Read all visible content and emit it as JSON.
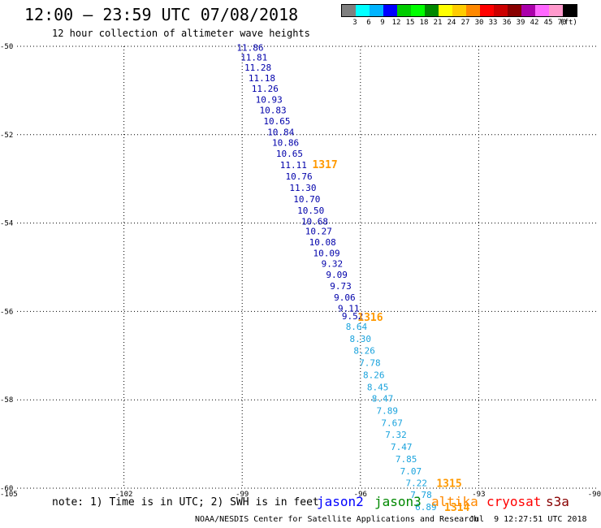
{
  "header": {
    "title": "12:00 – 23:59 UTC 07/08/2018",
    "subtitle": "12 hour collection of altimeter wave heights"
  },
  "legend": {
    "colors": [
      "#7f7f7f",
      "#00ffff",
      "#00b4ff",
      "#0000ff",
      "#00cc00",
      "#00ff00",
      "#008800",
      "#ffff00",
      "#ffcc00",
      "#ff8800",
      "#ff0000",
      "#cc0000",
      "#880000",
      "#aa00aa",
      "#ff66ff",
      "#ff99cc",
      "#000000"
    ],
    "labels": [
      "3",
      "6",
      "9",
      "12",
      "15",
      "18",
      "21",
      "24",
      "27",
      "30",
      "33",
      "36",
      "39",
      "42",
      "45",
      "70",
      "(ft)"
    ]
  },
  "satellites": [
    {
      "name": "jason2",
      "color": "#0000ff"
    },
    {
      "name": "jason3",
      "color": "#008800"
    },
    {
      "name": "altika",
      "color": "#ff8800"
    },
    {
      "name": "cryosat",
      "color": "#ff0000"
    },
    {
      "name": "s3a",
      "color": "#880000"
    }
  ],
  "footer": {
    "note": "note: 1) Time is in UTC; 2) SWH is in feet",
    "credit": "NOAA/NESDIS Center for Satellite Applications and Research",
    "timestamp": "Jul  9 12:27:51 UTC 2018"
  },
  "chart_data": {
    "type": "scatter",
    "xlim": [
      -105,
      -90
    ],
    "ylim": [
      -60,
      -50
    ],
    "x_ticks": [
      -105,
      -102,
      -99,
      -96,
      -93,
      -90
    ],
    "y_ticks": [
      -50,
      -52,
      -54,
      -56,
      -58,
      -60
    ],
    "grid": true,
    "labels": [
      {
        "lon": -98.8,
        "lat": -50.03,
        "text": "11.86",
        "color": "#0000aa"
      },
      {
        "lon": -98.7,
        "lat": -50.25,
        "text": "11.81",
        "color": "#0000aa"
      },
      {
        "lon": -98.6,
        "lat": -50.48,
        "text": "11.28",
        "color": "#0000aa"
      },
      {
        "lon": -98.5,
        "lat": -50.72,
        "text": "11.18",
        "color": "#0000aa"
      },
      {
        "lon": -98.42,
        "lat": -50.96,
        "text": "11.26",
        "color": "#0000aa"
      },
      {
        "lon": -98.32,
        "lat": -51.2,
        "text": "10.93",
        "color": "#0000aa"
      },
      {
        "lon": -98.22,
        "lat": -51.44,
        "text": "10.83",
        "color": "#0000aa"
      },
      {
        "lon": -98.12,
        "lat": -51.69,
        "text": "10.65",
        "color": "#0000aa"
      },
      {
        "lon": -98.02,
        "lat": -51.94,
        "text": "10.84",
        "color": "#0000aa"
      },
      {
        "lon": -97.9,
        "lat": -52.18,
        "text": "10.86",
        "color": "#0000aa"
      },
      {
        "lon": -97.8,
        "lat": -52.43,
        "text": "10.65",
        "color": "#0000aa"
      },
      {
        "lon": -97.7,
        "lat": -52.68,
        "text": "11.11",
        "color": "#0000aa"
      },
      {
        "lon": -97.56,
        "lat": -52.94,
        "text": "10.76",
        "color": "#0000aa"
      },
      {
        "lon": -97.46,
        "lat": -53.2,
        "text": "11.30",
        "color": "#0000aa"
      },
      {
        "lon": -97.36,
        "lat": -53.46,
        "text": "10.70",
        "color": "#0000aa"
      },
      {
        "lon": -97.26,
        "lat": -53.71,
        "text": "10.50",
        "color": "#0000aa"
      },
      {
        "lon": -97.16,
        "lat": -53.96,
        "text": "10.68",
        "color": "#0000aa"
      },
      {
        "lon": -97.06,
        "lat": -54.18,
        "text": "10.27",
        "color": "#0000aa"
      },
      {
        "lon": -96.96,
        "lat": -54.43,
        "text": "10.08",
        "color": "#0000aa"
      },
      {
        "lon": -96.86,
        "lat": -54.68,
        "text": "10.09",
        "color": "#0000aa"
      },
      {
        "lon": -96.72,
        "lat": -54.92,
        "text": "9.32",
        "color": "#0000aa"
      },
      {
        "lon": -96.6,
        "lat": -55.17,
        "text": "9.09",
        "color": "#0000aa"
      },
      {
        "lon": -96.5,
        "lat": -55.42,
        "text": "9.73",
        "color": "#0000aa"
      },
      {
        "lon": -96.4,
        "lat": -55.68,
        "text": "9.06",
        "color": "#0000aa"
      },
      {
        "lon": -96.3,
        "lat": -55.93,
        "text": "9.11",
        "color": "#0000aa"
      },
      {
        "lon": -96.2,
        "lat": -56.1,
        "text": "9.52",
        "color": "#0000aa"
      },
      {
        "lon": -96.1,
        "lat": -56.34,
        "text": "8.64",
        "color": "#1aa3dd"
      },
      {
        "lon": -96.0,
        "lat": -56.62,
        "text": "8.30",
        "color": "#1aa3dd"
      },
      {
        "lon": -95.9,
        "lat": -56.88,
        "text": "8.26",
        "color": "#1aa3dd"
      },
      {
        "lon": -95.76,
        "lat": -57.16,
        "text": "7.78",
        "color": "#1aa3dd"
      },
      {
        "lon": -95.66,
        "lat": -57.44,
        "text": "8.26",
        "color": "#1aa3dd"
      },
      {
        "lon": -95.56,
        "lat": -57.71,
        "text": "8.45",
        "color": "#1aa3dd"
      },
      {
        "lon": -95.44,
        "lat": -57.97,
        "text": "8.47",
        "color": "#1aa3dd"
      },
      {
        "lon": -95.32,
        "lat": -58.24,
        "text": "7.89",
        "color": "#1aa3dd"
      },
      {
        "lon": -95.2,
        "lat": -58.52,
        "text": "7.67",
        "color": "#1aa3dd"
      },
      {
        "lon": -95.1,
        "lat": -58.79,
        "text": "7.32",
        "color": "#1aa3dd"
      },
      {
        "lon": -94.96,
        "lat": -59.06,
        "text": "7.47",
        "color": "#1aa3dd"
      },
      {
        "lon": -94.84,
        "lat": -59.34,
        "text": "7.85",
        "color": "#1aa3dd"
      },
      {
        "lon": -94.72,
        "lat": -59.61,
        "text": "7.07",
        "color": "#1aa3dd"
      },
      {
        "lon": -94.58,
        "lat": -59.88,
        "text": "7.22",
        "color": "#1aa3dd"
      },
      {
        "lon": -94.46,
        "lat": -60.15,
        "text": "7.78",
        "color": "#1aa3dd"
      },
      {
        "lon": -94.34,
        "lat": -60.42,
        "text": "6.89",
        "color": "#1aa3dd"
      }
    ],
    "pass_labels": [
      {
        "lon": -96.9,
        "lat": -52.67,
        "text": "1317",
        "color": "#ff9900"
      },
      {
        "lon": -95.75,
        "lat": -56.12,
        "text": "1316",
        "color": "#ff9900"
      },
      {
        "lon": -93.75,
        "lat": -59.88,
        "text": "1315",
        "color": "#ff9900"
      },
      {
        "lon": -93.55,
        "lat": -60.42,
        "text": "1314",
        "color": "#ff9900"
      }
    ]
  }
}
